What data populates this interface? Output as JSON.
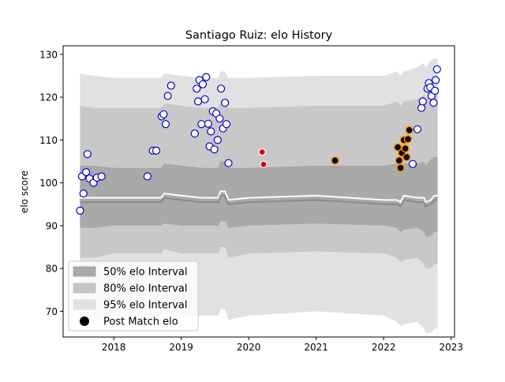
{
  "chart_data": {
    "type": "scatter",
    "title": "Santiago Ruiz: elo History",
    "xlabel": "",
    "ylabel": "elo score",
    "xlim": [
      2017.25,
      2023.05
    ],
    "ylim": [
      64,
      132
    ],
    "x_ticks": [
      2018,
      2019,
      2020,
      2021,
      2022,
      2023
    ],
    "x_tick_labels": [
      "2018",
      "2019",
      "2020",
      "2021",
      "2022",
      "2023"
    ],
    "y_ticks": [
      70,
      80,
      90,
      100,
      110,
      120,
      130
    ],
    "y_tick_labels": [
      "70",
      "80",
      "90",
      "100",
      "110",
      "120",
      "130"
    ],
    "grid": false,
    "legend": {
      "placement": "lower-left",
      "entries": [
        {
          "label": "50% elo Interval",
          "kind": "patch",
          "color": "#a9a9a9"
        },
        {
          "label": "80% elo Interval",
          "kind": "patch",
          "color": "#c4c4c4"
        },
        {
          "label": "95% elo Interval",
          "kind": "patch",
          "color": "#e1e1e1"
        },
        {
          "label": "Post Match elo",
          "kind": "marker",
          "color": "#000000"
        }
      ]
    },
    "bands": {
      "x": [
        2017.5,
        2017.7,
        2018.0,
        2018.4,
        2018.7,
        2018.75,
        2019.0,
        2019.3,
        2019.55,
        2019.58,
        2019.65,
        2019.7,
        2020.0,
        2021.0,
        2022.0,
        2022.2,
        2022.25,
        2022.3,
        2022.5,
        2022.6,
        2022.62,
        2022.7,
        2022.75,
        2022.8
      ],
      "median": [
        96.5,
        96.5,
        96.5,
        96.5,
        96.5,
        97.5,
        97.0,
        96.5,
        96.5,
        98.0,
        98.0,
        96.0,
        96.5,
        97.0,
        96.0,
        96.0,
        95.5,
        97.0,
        96.5,
        96.5,
        95.5,
        96.0,
        97.0,
        97.0
      ],
      "ci50": {
        "lower": [
          89.5,
          89.5,
          90.0,
          90.0,
          90.0,
          90.5,
          90.0,
          90.0,
          90.0,
          91.0,
          91.0,
          89.5,
          90.0,
          90.5,
          90.0,
          89.5,
          88.5,
          89.0,
          89.5,
          88.5,
          87.5,
          87.5,
          88.5,
          88.5
        ],
        "upper": [
          104.0,
          104.0,
          103.5,
          103.5,
          103.5,
          104.5,
          104.0,
          103.5,
          103.5,
          105.0,
          105.0,
          103.5,
          103.5,
          104.0,
          104.0,
          104.5,
          103.5,
          104.5,
          104.5,
          105.0,
          104.0,
          105.5,
          106.0,
          106.0
        ]
      },
      "ci80": {
        "lower": [
          82.5,
          82.5,
          83.5,
          83.5,
          83.5,
          84.5,
          83.5,
          83.5,
          83.5,
          85.0,
          85.0,
          82.5,
          83.5,
          84.0,
          83.5,
          82.5,
          81.5,
          82.0,
          82.5,
          81.0,
          80.0,
          80.0,
          81.0,
          81.0
        ],
        "upper": [
          118.0,
          117.5,
          117.5,
          117.5,
          117.5,
          118.5,
          118.0,
          117.5,
          117.5,
          119.0,
          119.0,
          117.5,
          117.5,
          118.0,
          118.0,
          119.0,
          118.0,
          119.0,
          119.5,
          120.5,
          119.5,
          121.0,
          121.5,
          121.5
        ]
      },
      "ci95": {
        "lower": [
          67.5,
          67.5,
          69.0,
          69.0,
          69.0,
          70.0,
          69.0,
          69.0,
          69.0,
          70.5,
          70.5,
          68.0,
          69.0,
          70.0,
          69.0,
          67.5,
          66.5,
          67.0,
          67.5,
          66.0,
          65.0,
          65.0,
          66.0,
          66.0
        ],
        "upper": [
          125.5,
          125.0,
          124.5,
          124.5,
          124.5,
          125.5,
          125.0,
          124.5,
          124.5,
          126.0,
          126.0,
          124.5,
          124.5,
          125.0,
          125.0,
          126.0,
          125.0,
          126.0,
          127.0,
          128.0,
          127.0,
          128.5,
          129.0,
          129.0
        ]
      }
    },
    "series": [
      {
        "label": "blue-outlined points",
        "color": "#0000cd",
        "points": [
          [
            2017.5,
            93.5
          ],
          [
            2017.53,
            101.5
          ],
          [
            2017.55,
            97.5
          ],
          [
            2017.59,
            102.5
          ],
          [
            2017.61,
            106.7
          ],
          [
            2017.64,
            101.0
          ],
          [
            2017.7,
            100.0
          ],
          [
            2017.75,
            101.2
          ],
          [
            2017.82,
            101.5
          ],
          [
            2018.5,
            101.5
          ],
          [
            2018.58,
            107.5
          ],
          [
            2018.63,
            107.5
          ],
          [
            2018.71,
            115.5
          ],
          [
            2018.74,
            116.0
          ],
          [
            2018.77,
            113.7
          ],
          [
            2018.8,
            120.3
          ],
          [
            2018.85,
            122.7
          ],
          [
            2019.2,
            111.5
          ],
          [
            2019.23,
            122.0
          ],
          [
            2019.25,
            119.0
          ],
          [
            2019.27,
            124.0
          ],
          [
            2019.3,
            113.7
          ],
          [
            2019.32,
            123.0
          ],
          [
            2019.35,
            119.5
          ],
          [
            2019.37,
            124.7
          ],
          [
            2019.4,
            113.8
          ],
          [
            2019.42,
            108.5
          ],
          [
            2019.44,
            112.0
          ],
          [
            2019.47,
            116.7
          ],
          [
            2019.49,
            107.8
          ],
          [
            2019.52,
            116.2
          ],
          [
            2019.54,
            110.0
          ],
          [
            2019.57,
            115.0
          ],
          [
            2019.59,
            122.0
          ],
          [
            2019.62,
            112.7
          ],
          [
            2019.65,
            118.7
          ],
          [
            2019.67,
            113.7
          ],
          [
            2019.7,
            104.6
          ],
          [
            2022.43,
            104.4
          ],
          [
            2022.5,
            112.5
          ],
          [
            2022.56,
            117.5
          ],
          [
            2022.58,
            119.0
          ],
          [
            2022.65,
            122.0
          ],
          [
            2022.67,
            123.3
          ],
          [
            2022.69,
            122.3
          ],
          [
            2022.71,
            120.3
          ],
          [
            2022.74,
            118.7
          ],
          [
            2022.76,
            121.5
          ],
          [
            2022.77,
            124.0
          ],
          [
            2022.79,
            126.5
          ]
        ]
      },
      {
        "label": "red points",
        "color": "#dd0000",
        "points": [
          [
            2020.2,
            107.2
          ],
          [
            2020.22,
            104.3
          ]
        ]
      },
      {
        "label": "orange-outlined points",
        "color": "#ff8c00",
        "points": [
          [
            2021.28,
            105.2
          ],
          [
            2022.21,
            108.3
          ],
          [
            2022.23,
            105.2
          ],
          [
            2022.25,
            103.5
          ],
          [
            2022.27,
            107.0
          ],
          [
            2022.3,
            110.0
          ],
          [
            2022.32,
            108.0
          ],
          [
            2022.34,
            106.0
          ],
          [
            2022.36,
            110.2
          ],
          [
            2022.38,
            112.3
          ]
        ]
      }
    ]
  }
}
